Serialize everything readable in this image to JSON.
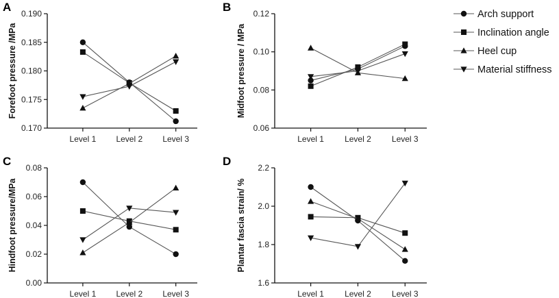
{
  "legend": [
    {
      "name": "Arch support",
      "marker": "circle"
    },
    {
      "name": "Inclination angle",
      "marker": "square"
    },
    {
      "name": "Heel cup",
      "marker": "triangle-up"
    },
    {
      "name": "Material stiffness",
      "marker": "triangle-down"
    }
  ],
  "colors": {
    "line": "#555555",
    "marker": "#111111",
    "axis": "#111111"
  },
  "chart_data": [
    {
      "type": "line",
      "panel": "A",
      "ylabel": "Forefoot pressure /MPa",
      "categories": [
        "Level 1",
        "Level 2",
        "Level 3"
      ],
      "ylim": [
        0.17,
        0.19
      ],
      "yticks": [
        "0.170",
        "0.175",
        "0.180",
        "0.185",
        "0.190"
      ],
      "series": [
        {
          "name": "Arch support",
          "values": [
            0.185,
            0.178,
            0.1712
          ]
        },
        {
          "name": "Inclination angle",
          "values": [
            0.1833,
            0.1779,
            0.173
          ]
        },
        {
          "name": "Heel cup",
          "values": [
            0.1735,
            0.1778,
            0.1826
          ]
        },
        {
          "name": "Material stiffness",
          "values": [
            0.1755,
            0.1773,
            0.1816
          ]
        }
      ]
    },
    {
      "type": "line",
      "panel": "B",
      "ylabel": "Midfoot pressure / MPa",
      "categories": [
        "Level 1",
        "Level 2",
        "Level 3"
      ],
      "ylim": [
        0.06,
        0.12
      ],
      "yticks": [
        "0.06",
        "0.08",
        "0.10",
        "0.12"
      ],
      "series": [
        {
          "name": "Arch support",
          "values": [
            0.085,
            0.091,
            0.103
          ]
        },
        {
          "name": "Inclination angle",
          "values": [
            0.082,
            0.092,
            0.104
          ]
        },
        {
          "name": "Heel cup",
          "values": [
            0.102,
            0.089,
            0.086
          ]
        },
        {
          "name": "Material stiffness",
          "values": [
            0.087,
            0.09,
            0.099
          ]
        }
      ]
    },
    {
      "type": "line",
      "panel": "C",
      "ylabel": "Hindfoot pressure/MPa",
      "categories": [
        "Level 1",
        "Level 2",
        "Level 3"
      ],
      "ylim": [
        0.0,
        0.08
      ],
      "yticks": [
        "0.00",
        "0.02",
        "0.04",
        "0.06",
        "0.08"
      ],
      "series": [
        {
          "name": "Arch support",
          "values": [
            0.07,
            0.039,
            0.02
          ]
        },
        {
          "name": "Inclination angle",
          "values": [
            0.05,
            0.043,
            0.037
          ]
        },
        {
          "name": "Heel cup",
          "values": [
            0.021,
            0.042,
            0.066
          ]
        },
        {
          "name": "Material stiffness",
          "values": [
            0.03,
            0.052,
            0.049
          ]
        }
      ]
    },
    {
      "type": "line",
      "panel": "D",
      "ylabel": "Plantar fascia strain/ %",
      "categories": [
        "Level 1",
        "Level 2",
        "Level 3"
      ],
      "ylim": [
        1.6,
        2.2
      ],
      "yticks": [
        "1.6",
        "1.8",
        "2.0",
        "2.2"
      ],
      "series": [
        {
          "name": "Arch support",
          "values": [
            2.1,
            1.925,
            1.715
          ]
        },
        {
          "name": "Inclination angle",
          "values": [
            1.945,
            1.94,
            1.86
          ]
        },
        {
          "name": "Heel cup",
          "values": [
            2.025,
            1.935,
            1.775
          ]
        },
        {
          "name": "Material stiffness",
          "values": [
            1.835,
            1.79,
            2.12
          ]
        }
      ]
    }
  ]
}
